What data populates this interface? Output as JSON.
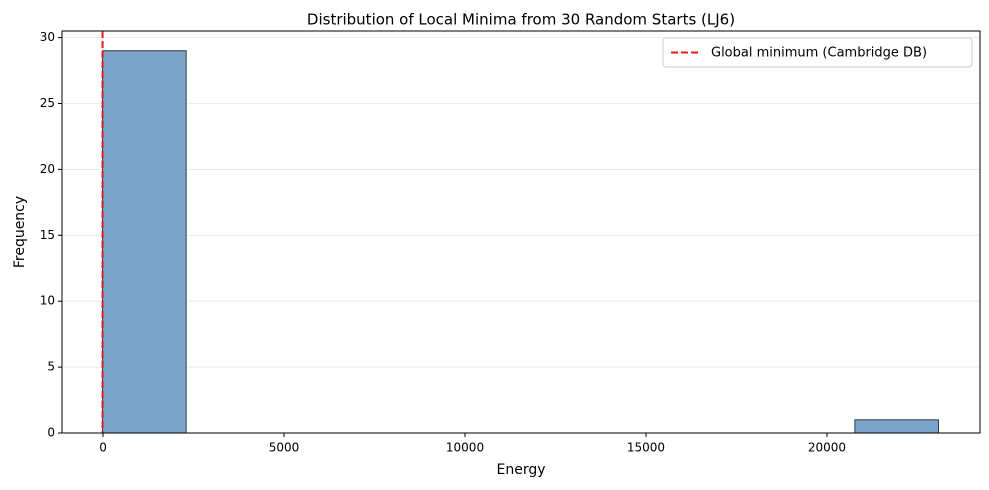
{
  "chart_data": {
    "type": "histogram",
    "title": "Distribution of Local Minima from 30 Random Starts (LJ6)",
    "x_label": "Energy",
    "y_label": "Frequency",
    "bins": [
      -12.71,
      2296.56,
      4605.83,
      6915.1,
      9224.37,
      11533.64,
      13842.91,
      16152.19,
      18461.46,
      20770.73,
      23080.0
    ],
    "counts": [
      29,
      0,
      0,
      0,
      0,
      0,
      0,
      0,
      0,
      1
    ],
    "color": "#6f9bc6",
    "edge_color": "#2b3a4a",
    "reference_line": {
      "name": "Global minimum (Cambridge DB)",
      "x": -12.712,
      "color": "#e8191c"
    },
    "xlim": [
      -1133,
      24227
    ],
    "xticks": [
      0,
      5000,
      10000,
      15000,
      20000
    ],
    "ylim": [
      0,
      30.5
    ],
    "yticks": [
      0,
      5,
      10,
      15,
      20,
      25,
      30
    ],
    "grid": "y",
    "legend": "upper right"
  }
}
